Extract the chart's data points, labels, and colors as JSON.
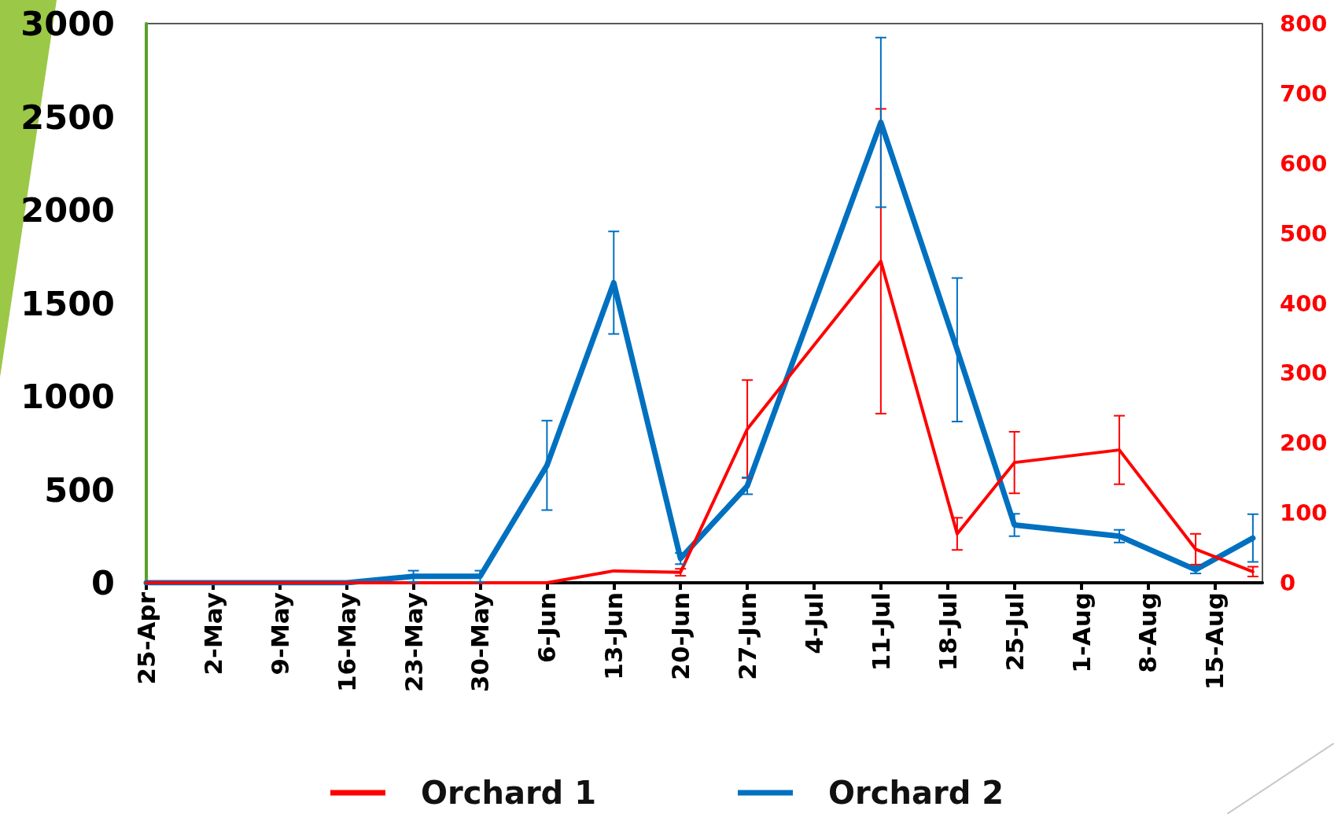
{
  "chart_data": {
    "type": "line",
    "x": [
      "--04-25",
      "--05-02",
      "--05-09",
      "--05-16",
      "--05-23",
      "--05-30",
      "--06-06",
      "--06-13",
      "--06-20",
      "--06-27",
      "--07-11",
      "--07-19",
      "--07-25",
      "--08-05",
      "--08-13",
      "--08-19"
    ],
    "series": [
      {
        "name": "Orchard 1",
        "color": "#ff0000",
        "axis": "y2",
        "values": [
          0,
          0,
          0,
          0,
          0,
          0,
          0,
          17,
          15,
          220,
          460,
          70,
          172,
          190,
          48,
          16
        ],
        "errors": [
          null,
          null,
          null,
          null,
          null,
          null,
          null,
          null,
          5,
          70,
          218,
          23,
          44,
          49,
          22,
          7
        ]
      },
      {
        "name": "Orchard 2",
        "color": "#0070c0",
        "values": [
          0,
          0,
          0,
          0,
          35,
          35,
          630,
          1610,
          130,
          520,
          2470,
          1250,
          310,
          250,
          70,
          240
        ],
        "errors": [
          null,
          null,
          null,
          null,
          30,
          30,
          240,
          275,
          30,
          45,
          455,
          385,
          60,
          34,
          20,
          128
        ]
      }
    ],
    "xlim": [
      "--04-25",
      "--08-20"
    ],
    "xticks": [
      {
        "value": "--04-25",
        "label": "25-Apr"
      },
      {
        "value": "--05-02",
        "label": "2-May"
      },
      {
        "value": "--05-09",
        "label": "9-May"
      },
      {
        "value": "--05-16",
        "label": "16-May"
      },
      {
        "value": "--05-23",
        "label": "23-May"
      },
      {
        "value": "--05-30",
        "label": "30-May"
      },
      {
        "value": "--06-06",
        "label": "6-Jun"
      },
      {
        "value": "--06-13",
        "label": "13-Jun"
      },
      {
        "value": "--06-20",
        "label": "20-Jun"
      },
      {
        "value": "--06-27",
        "label": "27-Jun"
      },
      {
        "value": "--07-04",
        "label": "4-Jul"
      },
      {
        "value": "--07-11",
        "label": "11-Jul"
      },
      {
        "value": "--07-18",
        "label": "18-Jul"
      },
      {
        "value": "--07-25",
        "label": "25-Jul"
      },
      {
        "value": "--08-01",
        "label": "1-Aug"
      },
      {
        "value": "--08-08",
        "label": "8-Aug"
      },
      {
        "value": "--08-15",
        "label": "15-Aug"
      }
    ],
    "ylim": [
      0,
      3000
    ],
    "yticks": [
      0,
      500,
      1000,
      1500,
      2000,
      2500,
      3000
    ],
    "y2lim": [
      0,
      800
    ],
    "y2ticks": [
      0,
      100,
      200,
      300,
      400,
      500,
      600,
      700,
      800
    ],
    "grid": false,
    "legend": "bottom",
    "marker": "none",
    "line_style": "solid"
  }
}
